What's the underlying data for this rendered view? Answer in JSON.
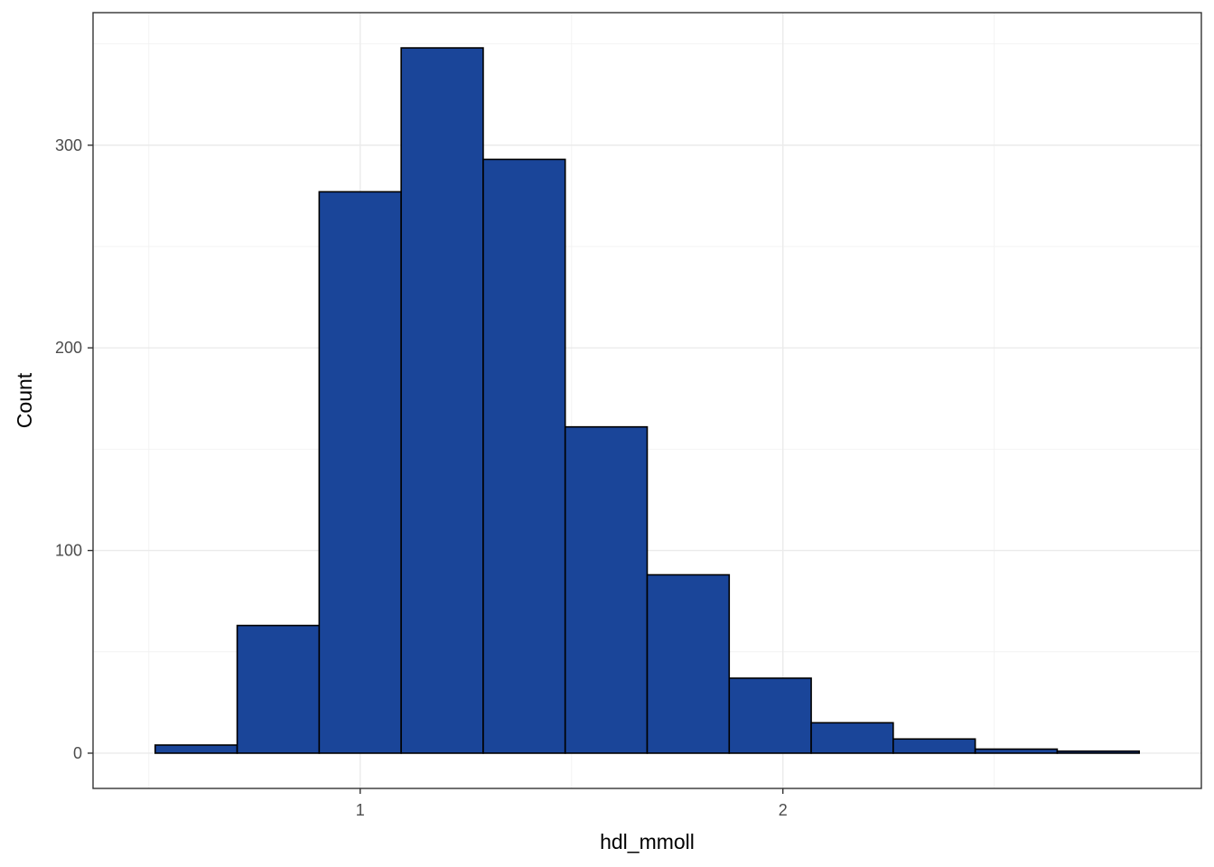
{
  "chart_data": {
    "type": "bar",
    "subtype": "histogram",
    "title": "",
    "xlabel": "hdl_mmoll",
    "ylabel": "Count",
    "bin_width": 0.194,
    "bin_centers": [
      0.612,
      0.806,
      1.0,
      1.194,
      1.388,
      1.582,
      1.776,
      1.97,
      2.164,
      2.358,
      2.552,
      2.746
    ],
    "values": [
      4,
      63,
      277,
      348,
      293,
      161,
      88,
      37,
      15,
      7,
      2,
      1
    ],
    "xlim": [
      0.368,
      2.99
    ],
    "ylim": [
      -17.4,
      365.4
    ],
    "x_ticks": [
      1,
      2
    ],
    "x_tick_labels": [
      "1",
      "2"
    ],
    "y_ticks": [
      0,
      100,
      200,
      300
    ],
    "y_tick_labels": [
      "0",
      "100",
      "200",
      "300"
    ],
    "x_minor_ticks": [
      0.5,
      1.5,
      2.5
    ],
    "y_minor_ticks": [
      50,
      150,
      250,
      350
    ],
    "grid": true,
    "legend": "none",
    "colors": {
      "bar_fill": "#1a4599",
      "bar_outline": "#000000",
      "panel_border": "#333333",
      "grid_major": "#ebebeb",
      "grid_minor": "#f2f2f2",
      "tick_text": "#4d4d4d"
    }
  }
}
